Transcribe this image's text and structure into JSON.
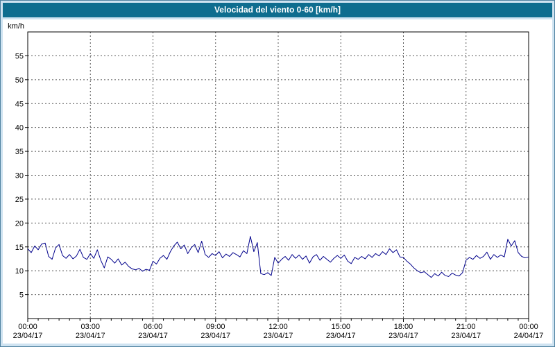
{
  "window": {
    "title": "Velocidad del viento 0-60 [km/h]"
  },
  "chart_data": {
    "type": "line",
    "title": "Velocidad del viento 0-60 [km/h]",
    "xlabel": "",
    "ylabel": "km/h",
    "ylim": [
      0,
      60
    ],
    "ytick_step": 5,
    "x_hours_range": [
      0,
      24
    ],
    "x_major_step_hours": 3,
    "x_minor_step_hours": 0.5,
    "grid": true,
    "legend": "none",
    "x_ticks": [
      {
        "time": "00:00",
        "date": "23/04/17"
      },
      {
        "time": "03:00",
        "date": "23/04/17"
      },
      {
        "time": "06:00",
        "date": "23/04/17"
      },
      {
        "time": "09:00",
        "date": "23/04/17"
      },
      {
        "time": "12:00",
        "date": "23/04/17"
      },
      {
        "time": "15:00",
        "date": "23/04/17"
      },
      {
        "time": "18:00",
        "date": "23/04/17"
      },
      {
        "time": "21:00",
        "date": "23/04/17"
      },
      {
        "time": "00:00",
        "date": "24/04/17"
      }
    ],
    "series": [
      {
        "name": "Velocidad del viento",
        "color": "#00008b",
        "start_hour": 0,
        "interval_minutes": 10,
        "values": [
          14.6,
          13.8,
          15.2,
          14.4,
          15.6,
          15.8,
          13.0,
          12.4,
          14.8,
          15.5,
          13.2,
          12.6,
          13.4,
          12.5,
          13.1,
          14.5,
          12.8,
          12.4,
          13.6,
          12.6,
          14.4,
          12.2,
          10.6,
          12.9,
          12.4,
          11.6,
          12.5,
          11.2,
          11.8,
          10.9,
          10.4,
          10.2,
          10.5,
          9.9,
          10.3,
          10.1,
          12.0,
          11.4,
          12.6,
          13.2,
          12.4,
          14.0,
          15.2,
          16.0,
          14.6,
          15.4,
          13.6,
          14.8,
          15.5,
          13.8,
          16.2,
          13.4,
          12.8,
          13.6,
          13.2,
          14.0,
          12.7,
          13.5,
          13.0,
          13.8,
          13.4,
          12.9,
          14.2,
          13.6,
          17.2,
          14.0,
          15.9,
          9.4,
          9.2,
          9.6,
          9.0,
          12.8,
          11.6,
          12.4,
          13.0,
          12.2,
          13.4,
          12.6,
          13.3,
          12.4,
          13.1,
          11.6,
          12.9,
          13.4,
          12.2,
          13.0,
          12.4,
          11.8,
          12.6,
          13.2,
          12.6,
          13.3,
          12.0,
          11.5,
          12.8,
          12.4,
          13.0,
          12.5,
          13.4,
          12.8,
          13.6,
          13.1,
          14.0,
          13.4,
          14.6,
          13.8,
          14.4,
          12.9,
          12.8,
          12.0,
          11.4,
          10.6,
          10.0,
          9.6,
          9.8,
          9.2,
          8.6,
          9.4,
          8.9,
          9.7,
          9.0,
          8.8,
          9.5,
          9.1,
          8.9,
          9.6,
          12.2,
          12.8,
          12.4,
          13.2,
          12.6,
          13.0,
          13.9,
          12.4,
          13.4,
          12.8,
          13.3,
          12.9,
          16.6,
          15.2,
          16.3,
          13.8,
          13.0,
          12.7,
          12.9
        ]
      }
    ],
    "colors": {
      "titlebar": "#0e6d8f",
      "window_background": "#cfe3f1",
      "window_border": "#4f81a0",
      "plot_background": "#ffffff",
      "grid": "#555555",
      "axis": "#000000",
      "line": "#00008b",
      "title_text": "#ffffff"
    }
  }
}
